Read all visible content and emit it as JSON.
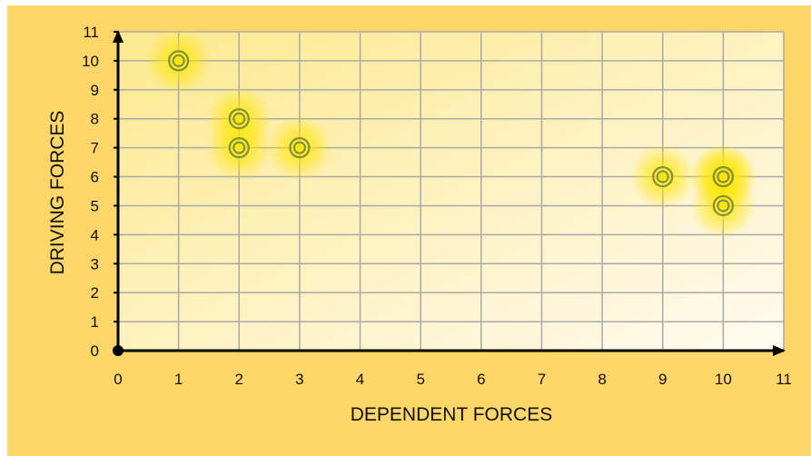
{
  "chart_data": {
    "type": "scatter",
    "title": "",
    "xlabel": "DEPENDENT FORCES",
    "ylabel": "DRIVING FORCES",
    "xlim": [
      0,
      11
    ],
    "ylim": [
      0,
      11
    ],
    "x_ticks": [
      0,
      1,
      2,
      3,
      4,
      5,
      6,
      7,
      8,
      9,
      10,
      11
    ],
    "y_ticks": [
      0,
      1,
      2,
      3,
      4,
      5,
      6,
      7,
      8,
      9,
      10,
      11
    ],
    "grid": true,
    "series": [
      {
        "points": [
          {
            "x": 1,
            "y": 10
          },
          {
            "x": 2,
            "y": 8
          },
          {
            "x": 2,
            "y": 7
          },
          {
            "x": 3,
            "y": 7
          },
          {
            "x": 9,
            "y": 6
          },
          {
            "x": 10,
            "y": 6
          },
          {
            "x": 10,
            "y": 6
          },
          {
            "x": 10,
            "y": 5
          }
        ]
      }
    ],
    "colors": {
      "background": "#fed66a",
      "plot_area": "#fdf1b8",
      "grid": "#a9a9a9",
      "axis": "#000000",
      "marker_ring": "#7f8f3f",
      "marker_glow": "#ffe600"
    }
  }
}
